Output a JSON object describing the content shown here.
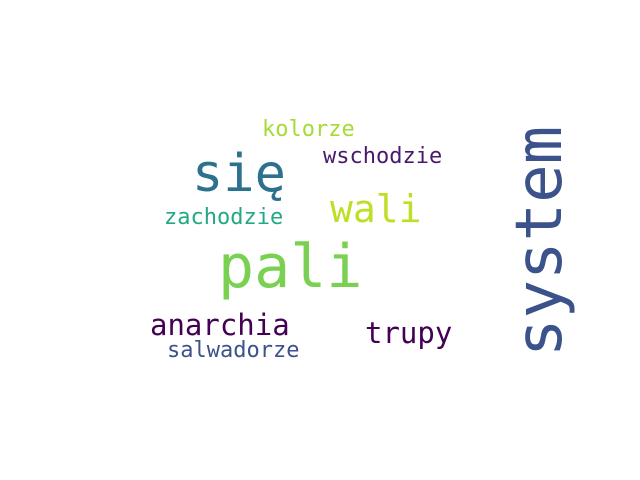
{
  "words": [
    {
      "text": "system",
      "color": "#3b528b",
      "orientation": "vertical"
    },
    {
      "text": "pali",
      "color": "#7ad151",
      "orientation": "horizontal"
    },
    {
      "text": "się",
      "color": "#2c728e",
      "orientation": "horizontal"
    },
    {
      "text": "wali",
      "color": "#bddf26",
      "orientation": "horizontal"
    },
    {
      "text": "trupy",
      "color": "#440154",
      "orientation": "horizontal"
    },
    {
      "text": "anarchia",
      "color": "#440154",
      "orientation": "horizontal"
    },
    {
      "text": "wschodzie",
      "color": "#481a6c",
      "orientation": "horizontal"
    },
    {
      "text": "zachodzie",
      "color": "#22a884",
      "orientation": "horizontal"
    },
    {
      "text": "kolorze",
      "color": "#a5db36",
      "orientation": "horizontal"
    },
    {
      "text": "salwadorze",
      "color": "#3b528b",
      "orientation": "horizontal"
    }
  ]
}
